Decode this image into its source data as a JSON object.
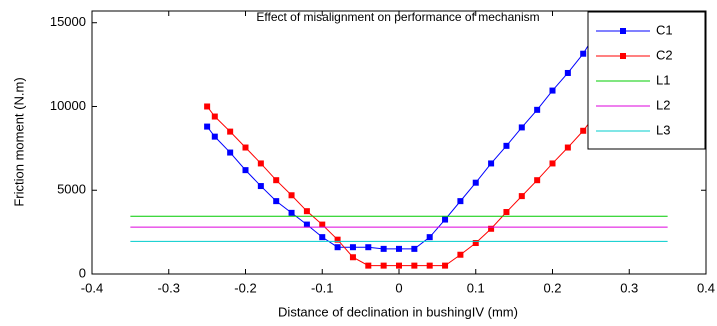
{
  "chart_data": {
    "type": "line",
    "title": "Effect of misalignment on performance of mechanism",
    "x_label": "Distance of declination in bushingIV (mm)",
    "y_label": "Friction moment (N.m)",
    "x": [
      -0.25,
      -0.24,
      -0.22,
      -0.2,
      -0.18,
      -0.16,
      -0.14,
      -0.12,
      -0.1,
      -0.08,
      -0.06,
      -0.04,
      -0.02,
      0,
      0.02,
      0.04,
      0.06,
      0.08,
      0.1,
      0.12,
      0.14,
      0.16,
      0.18,
      0.2,
      0.22,
      0.24,
      0.25
    ],
    "series": [
      {
        "name": "C1",
        "color": "#0000ff",
        "marker": true,
        "values": [
          8800,
          8200,
          7250,
          6200,
          5250,
          4350,
          3650,
          2950,
          2200,
          1600,
          1600,
          1600,
          1500,
          1500,
          1500,
          2200,
          3250,
          4350,
          5450,
          6600,
          7650,
          8750,
          9800,
          10950,
          12000,
          13150,
          13900
        ]
      },
      {
        "name": "C2",
        "color": "#ff0000",
        "marker": true,
        "values": [
          10000,
          9400,
          8500,
          7550,
          6600,
          5600,
          4700,
          3750,
          2950,
          2050,
          1000,
          500,
          500,
          500,
          500,
          500,
          500,
          1150,
          1850,
          2700,
          3700,
          4650,
          5600,
          6600,
          7550,
          8550,
          9150
        ]
      },
      {
        "name": "L1",
        "color": "#00cc00",
        "marker": false,
        "x": [
          -0.35,
          0.35
        ],
        "values": [
          3450,
          3450
        ]
      },
      {
        "name": "L2",
        "color": "#dd00dd",
        "marker": false,
        "x": [
          -0.35,
          0.35
        ],
        "values": [
          2800,
          2800
        ]
      },
      {
        "name": "L3",
        "color": "#00cccc",
        "marker": false,
        "x": [
          -0.35,
          0.35
        ],
        "values": [
          1950,
          1950
        ]
      }
    ],
    "xlim": [
      -0.4,
      0.4
    ],
    "xticks": [
      -0.4,
      -0.3,
      -0.2,
      -0.1,
      0,
      0.1,
      0.2,
      0.3,
      0.4
    ],
    "ylim": [
      0,
      15700
    ],
    "yticks": [
      0,
      5000,
      10000,
      15000
    ],
    "legend": "top-right"
  }
}
